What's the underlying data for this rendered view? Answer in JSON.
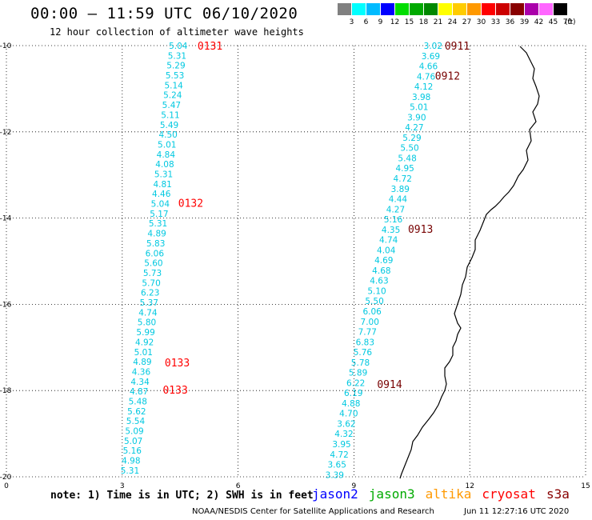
{
  "header": {
    "title": "00:00 – 11:59 UTC 06/10/2020",
    "subtitle": "12 hour collection of altimeter wave heights"
  },
  "legend": {
    "unit": "(ft)",
    "bins": [
      {
        "label": "3",
        "color": "#808080"
      },
      {
        "label": "6",
        "color": "#00ffff"
      },
      {
        "label": "9",
        "color": "#00bbff"
      },
      {
        "label": "12",
        "color": "#0000ff"
      },
      {
        "label": "15",
        "color": "#00dd00"
      },
      {
        "label": "18",
        "color": "#00aa00"
      },
      {
        "label": "21",
        "color": "#008800"
      },
      {
        "label": "24",
        "color": "#ffff00"
      },
      {
        "label": "27",
        "color": "#ffcc00"
      },
      {
        "label": "30",
        "color": "#ff9900"
      },
      {
        "label": "33",
        "color": "#ff0000"
      },
      {
        "label": "36",
        "color": "#cc0000"
      },
      {
        "label": "39",
        "color": "#880000"
      },
      {
        "label": "42",
        "color": "#aa00aa"
      },
      {
        "label": "45",
        "color": "#ff66ff"
      },
      {
        "label": "70",
        "color": "#000000"
      }
    ]
  },
  "axes": {
    "x": {
      "range": [
        0,
        15
      ],
      "ticks": [
        "0",
        "3",
        "6",
        "9",
        "12",
        "15"
      ]
    },
    "y": {
      "range": [
        -10,
        -20
      ],
      "ticks": [
        "-10",
        "-12",
        "-14",
        "-16",
        "-18",
        "-20"
      ]
    }
  },
  "tracks": [
    {
      "start": [
        4.45,
        -10.0
      ],
      "end": [
        3.2,
        -19.85
      ],
      "values": [
        "5.04",
        "5.31",
        "5.29",
        "5.53",
        "5.14",
        "5.24",
        "5.47",
        "5.11",
        "5.49",
        "4.50",
        "5.01",
        "4.84",
        "4.08",
        "5.31",
        "4.81",
        "4.46",
        "5.04",
        "5.17",
        "5.31",
        "4.89",
        "5.83",
        "6.06",
        "5.60",
        "5.73",
        "5.70",
        "6.23",
        "5.37",
        "4.74",
        "5.80",
        "5.99",
        "4.92",
        "5.01",
        "4.89",
        "4.36",
        "4.34",
        "4.87",
        "5.48",
        "5.62",
        "5.54",
        "5.09",
        "5.07",
        "5.16",
        "4.98",
        "5.31"
      ],
      "times": [
        {
          "label": "0131",
          "x": 4.95,
          "y": -10.0,
          "color": "#ff0000"
        },
        {
          "label": "0132",
          "x": 4.45,
          "y": -13.65,
          "color": "#ff0000"
        },
        {
          "label": "0133",
          "x": 4.1,
          "y": -17.35,
          "color": "#ff0000"
        },
        {
          "label": "0133",
          "x": 4.05,
          "y": -17.98,
          "color": "#ff0000"
        }
      ]
    },
    {
      "start": [
        11.05,
        -10.0
      ],
      "end": [
        8.5,
        -19.95
      ],
      "values": [
        "3.02",
        "3.69",
        "4.66",
        "4.76",
        "4.12",
        "3.98",
        "5.01",
        "3.90",
        "4.27",
        "5.29",
        "5.50",
        "5.48",
        "4.95",
        "4.72",
        "3.89",
        "4.44",
        "4.27",
        "5.16",
        "4.35",
        "4.74",
        "4.04",
        "4.69",
        "4.68",
        "4.63",
        "5.10",
        "5.50",
        "6.06",
        "7.00",
        "7.77",
        "6.83",
        "5.76",
        "5.78",
        "5.89",
        "6.22",
        "6.19",
        "4.88",
        "4.70",
        "3.62",
        "4.32",
        "3.95",
        "4.72",
        "3.65",
        "3.39"
      ],
      "times": [
        {
          "label": "0911",
          "x": 11.35,
          "y": -10.0,
          "color": "#770000"
        },
        {
          "label": "0912",
          "x": 11.1,
          "y": -10.7,
          "color": "#770000"
        },
        {
          "label": "0913",
          "x": 10.4,
          "y": -14.25,
          "color": "#770000"
        },
        {
          "label": "0914",
          "x": 9.6,
          "y": -17.85,
          "color": "#770000"
        }
      ]
    }
  ],
  "footer": {
    "note": "note: 1) Time is in UTC; 2) SWH is in feet",
    "satellites": [
      {
        "name": "jason2",
        "color": "#0000ff"
      },
      {
        "name": "jason3",
        "color": "#00aa00"
      },
      {
        "name": "altika",
        "color": "#ff9900"
      },
      {
        "name": "cryosat",
        "color": "#ff0000"
      },
      {
        "name": "s3a",
        "color": "#880000"
      }
    ],
    "credit": "NOAA/NESDIS Center for Satellite Applications and Research",
    "timestamp": "Jun 11 12:27:16 UTC 2020"
  }
}
